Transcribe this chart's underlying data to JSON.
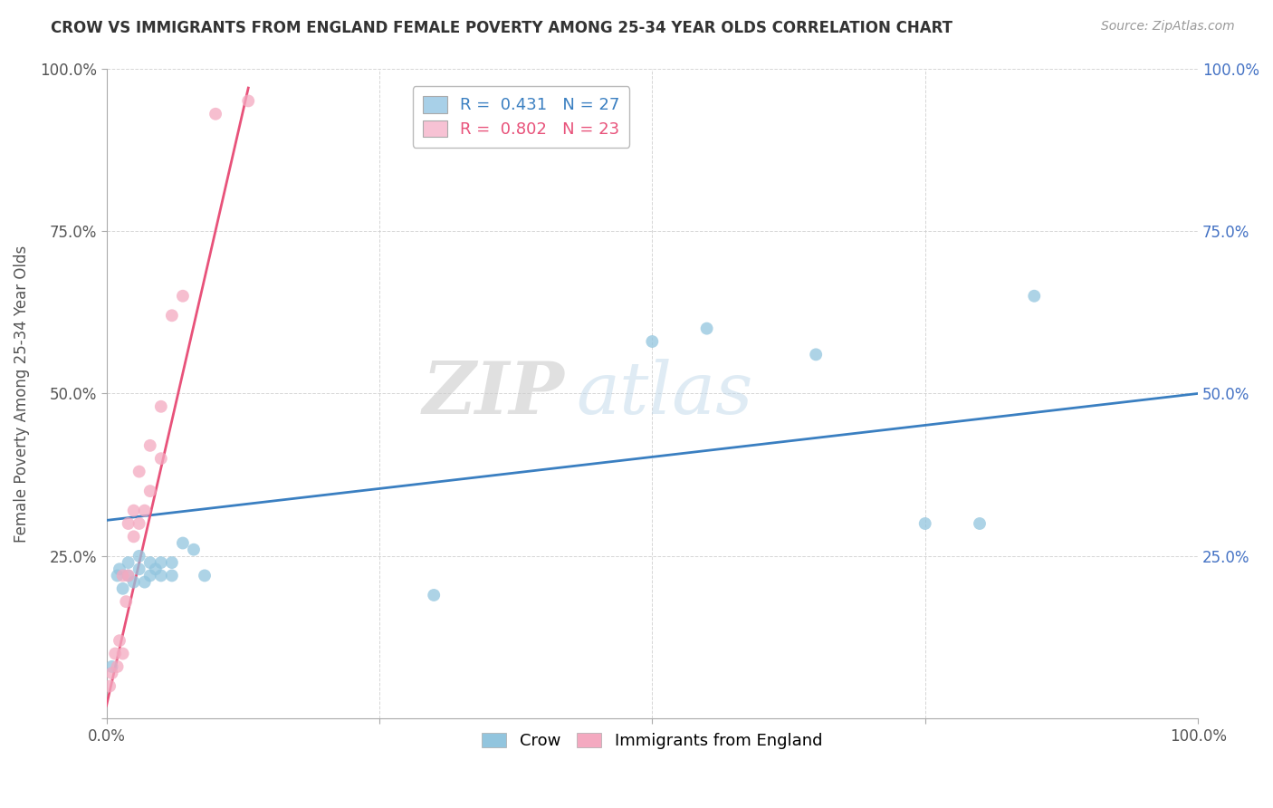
{
  "title": "CROW VS IMMIGRANTS FROM ENGLAND FEMALE POVERTY AMONG 25-34 YEAR OLDS CORRELATION CHART",
  "source": "Source: ZipAtlas.com",
  "ylabel": "Female Poverty Among 25-34 Year Olds",
  "xlim": [
    0,
    1.0
  ],
  "ylim": [
    0,
    1.0
  ],
  "crow_R": 0.431,
  "crow_N": 27,
  "eng_R": 0.802,
  "eng_N": 23,
  "crow_color": "#92c5de",
  "eng_color": "#f4a9c0",
  "crow_line_color": "#3a7fc1",
  "eng_line_color": "#e8527a",
  "legend_color_crow": "#a8d0e8",
  "legend_color_eng": "#f7c2d4",
  "crow_scatter_x": [
    0.005,
    0.01,
    0.012,
    0.015,
    0.02,
    0.02,
    0.025,
    0.03,
    0.03,
    0.035,
    0.04,
    0.04,
    0.045,
    0.05,
    0.05,
    0.06,
    0.06,
    0.07,
    0.08,
    0.09,
    0.3,
    0.5,
    0.55,
    0.65,
    0.75,
    0.8,
    0.85
  ],
  "crow_scatter_y": [
    0.08,
    0.22,
    0.23,
    0.2,
    0.22,
    0.24,
    0.21,
    0.23,
    0.25,
    0.21,
    0.22,
    0.24,
    0.23,
    0.22,
    0.24,
    0.22,
    0.24,
    0.27,
    0.26,
    0.22,
    0.19,
    0.58,
    0.6,
    0.56,
    0.3,
    0.3,
    0.65
  ],
  "eng_scatter_x": [
    0.003,
    0.005,
    0.008,
    0.01,
    0.012,
    0.015,
    0.015,
    0.018,
    0.02,
    0.02,
    0.025,
    0.025,
    0.03,
    0.03,
    0.035,
    0.04,
    0.04,
    0.05,
    0.05,
    0.06,
    0.07,
    0.1,
    0.13
  ],
  "eng_scatter_y": [
    0.05,
    0.07,
    0.1,
    0.08,
    0.12,
    0.1,
    0.22,
    0.18,
    0.22,
    0.3,
    0.28,
    0.32,
    0.3,
    0.38,
    0.32,
    0.35,
    0.42,
    0.4,
    0.48,
    0.62,
    0.65,
    0.93,
    0.95
  ],
  "crow_line_x": [
    0.0,
    1.0
  ],
  "crow_line_y": [
    0.305,
    0.5
  ],
  "eng_line_x": [
    0.0,
    0.13
  ],
  "eng_line_y": [
    0.02,
    0.97
  ]
}
